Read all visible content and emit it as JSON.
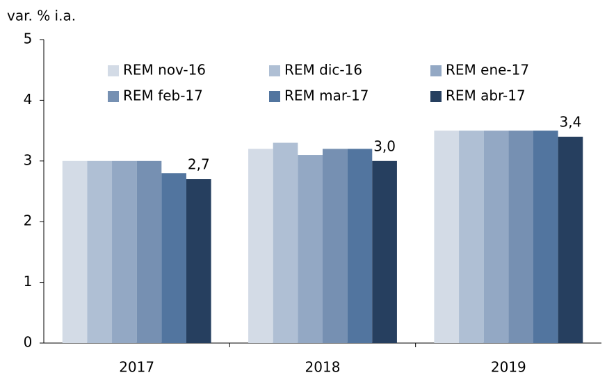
{
  "chart_data": {
    "type": "bar",
    "y_label": "var. % i.a.",
    "categories": [
      "2017",
      "2018",
      "2019"
    ],
    "series": [
      {
        "name": "REM nov-16",
        "color": "#d3dbe6",
        "values": [
          3.0,
          3.2,
          3.5
        ]
      },
      {
        "name": "REM dic-16",
        "color": "#afbfd4",
        "values": [
          3.0,
          3.3,
          3.5
        ]
      },
      {
        "name": "REM ene-17",
        "color": "#93a8c4",
        "values": [
          3.0,
          3.1,
          3.5
        ]
      },
      {
        "name": "REM feb-17",
        "color": "#7690b2",
        "values": [
          3.0,
          3.2,
          3.5
        ]
      },
      {
        "name": "REM mar-17",
        "color": "#52759f",
        "values": [
          2.8,
          3.2,
          3.5
        ]
      },
      {
        "name": "REM abr-17",
        "color": "#263f5f",
        "values": [
          2.7,
          3.0,
          3.4
        ],
        "value_labels": [
          "2,7",
          "3,0",
          "3,4"
        ]
      }
    ],
    "ylim": [
      0,
      5
    ],
    "yticks": [
      0,
      1,
      2,
      3,
      4,
      5
    ],
    "grid": false,
    "legend": "top"
  }
}
